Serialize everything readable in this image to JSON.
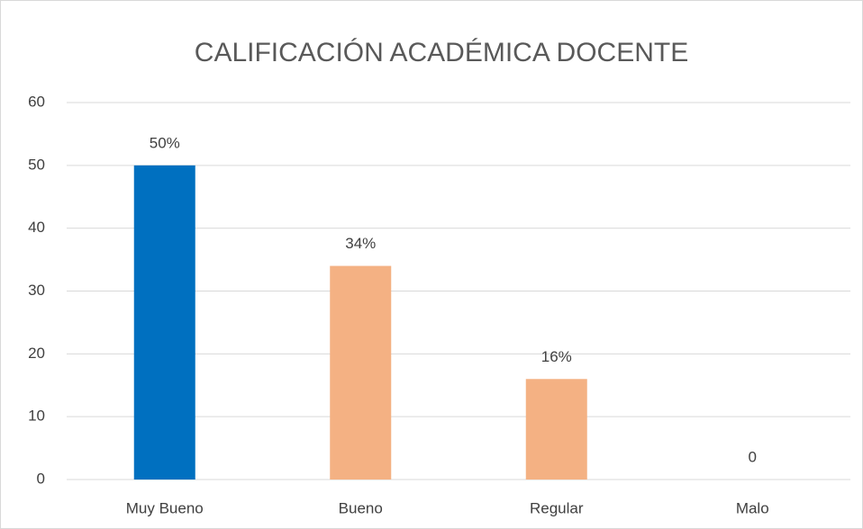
{
  "chart_data": {
    "type": "bar",
    "title": "CALIFICACIÓN ACADÉMICA DOCENTE",
    "categories": [
      "Muy Bueno",
      "Bueno",
      "Regular",
      "Malo"
    ],
    "values": [
      50,
      34,
      16,
      0
    ],
    "value_labels": [
      "50%",
      "34%",
      "16%",
      "0"
    ],
    "colors": [
      "#0070c0",
      "#f4b183",
      "#f4b183",
      "#f4b183"
    ],
    "ylim": [
      0,
      60
    ],
    "yticks": [
      0,
      10,
      20,
      30,
      40,
      50,
      60
    ],
    "grid": true
  }
}
